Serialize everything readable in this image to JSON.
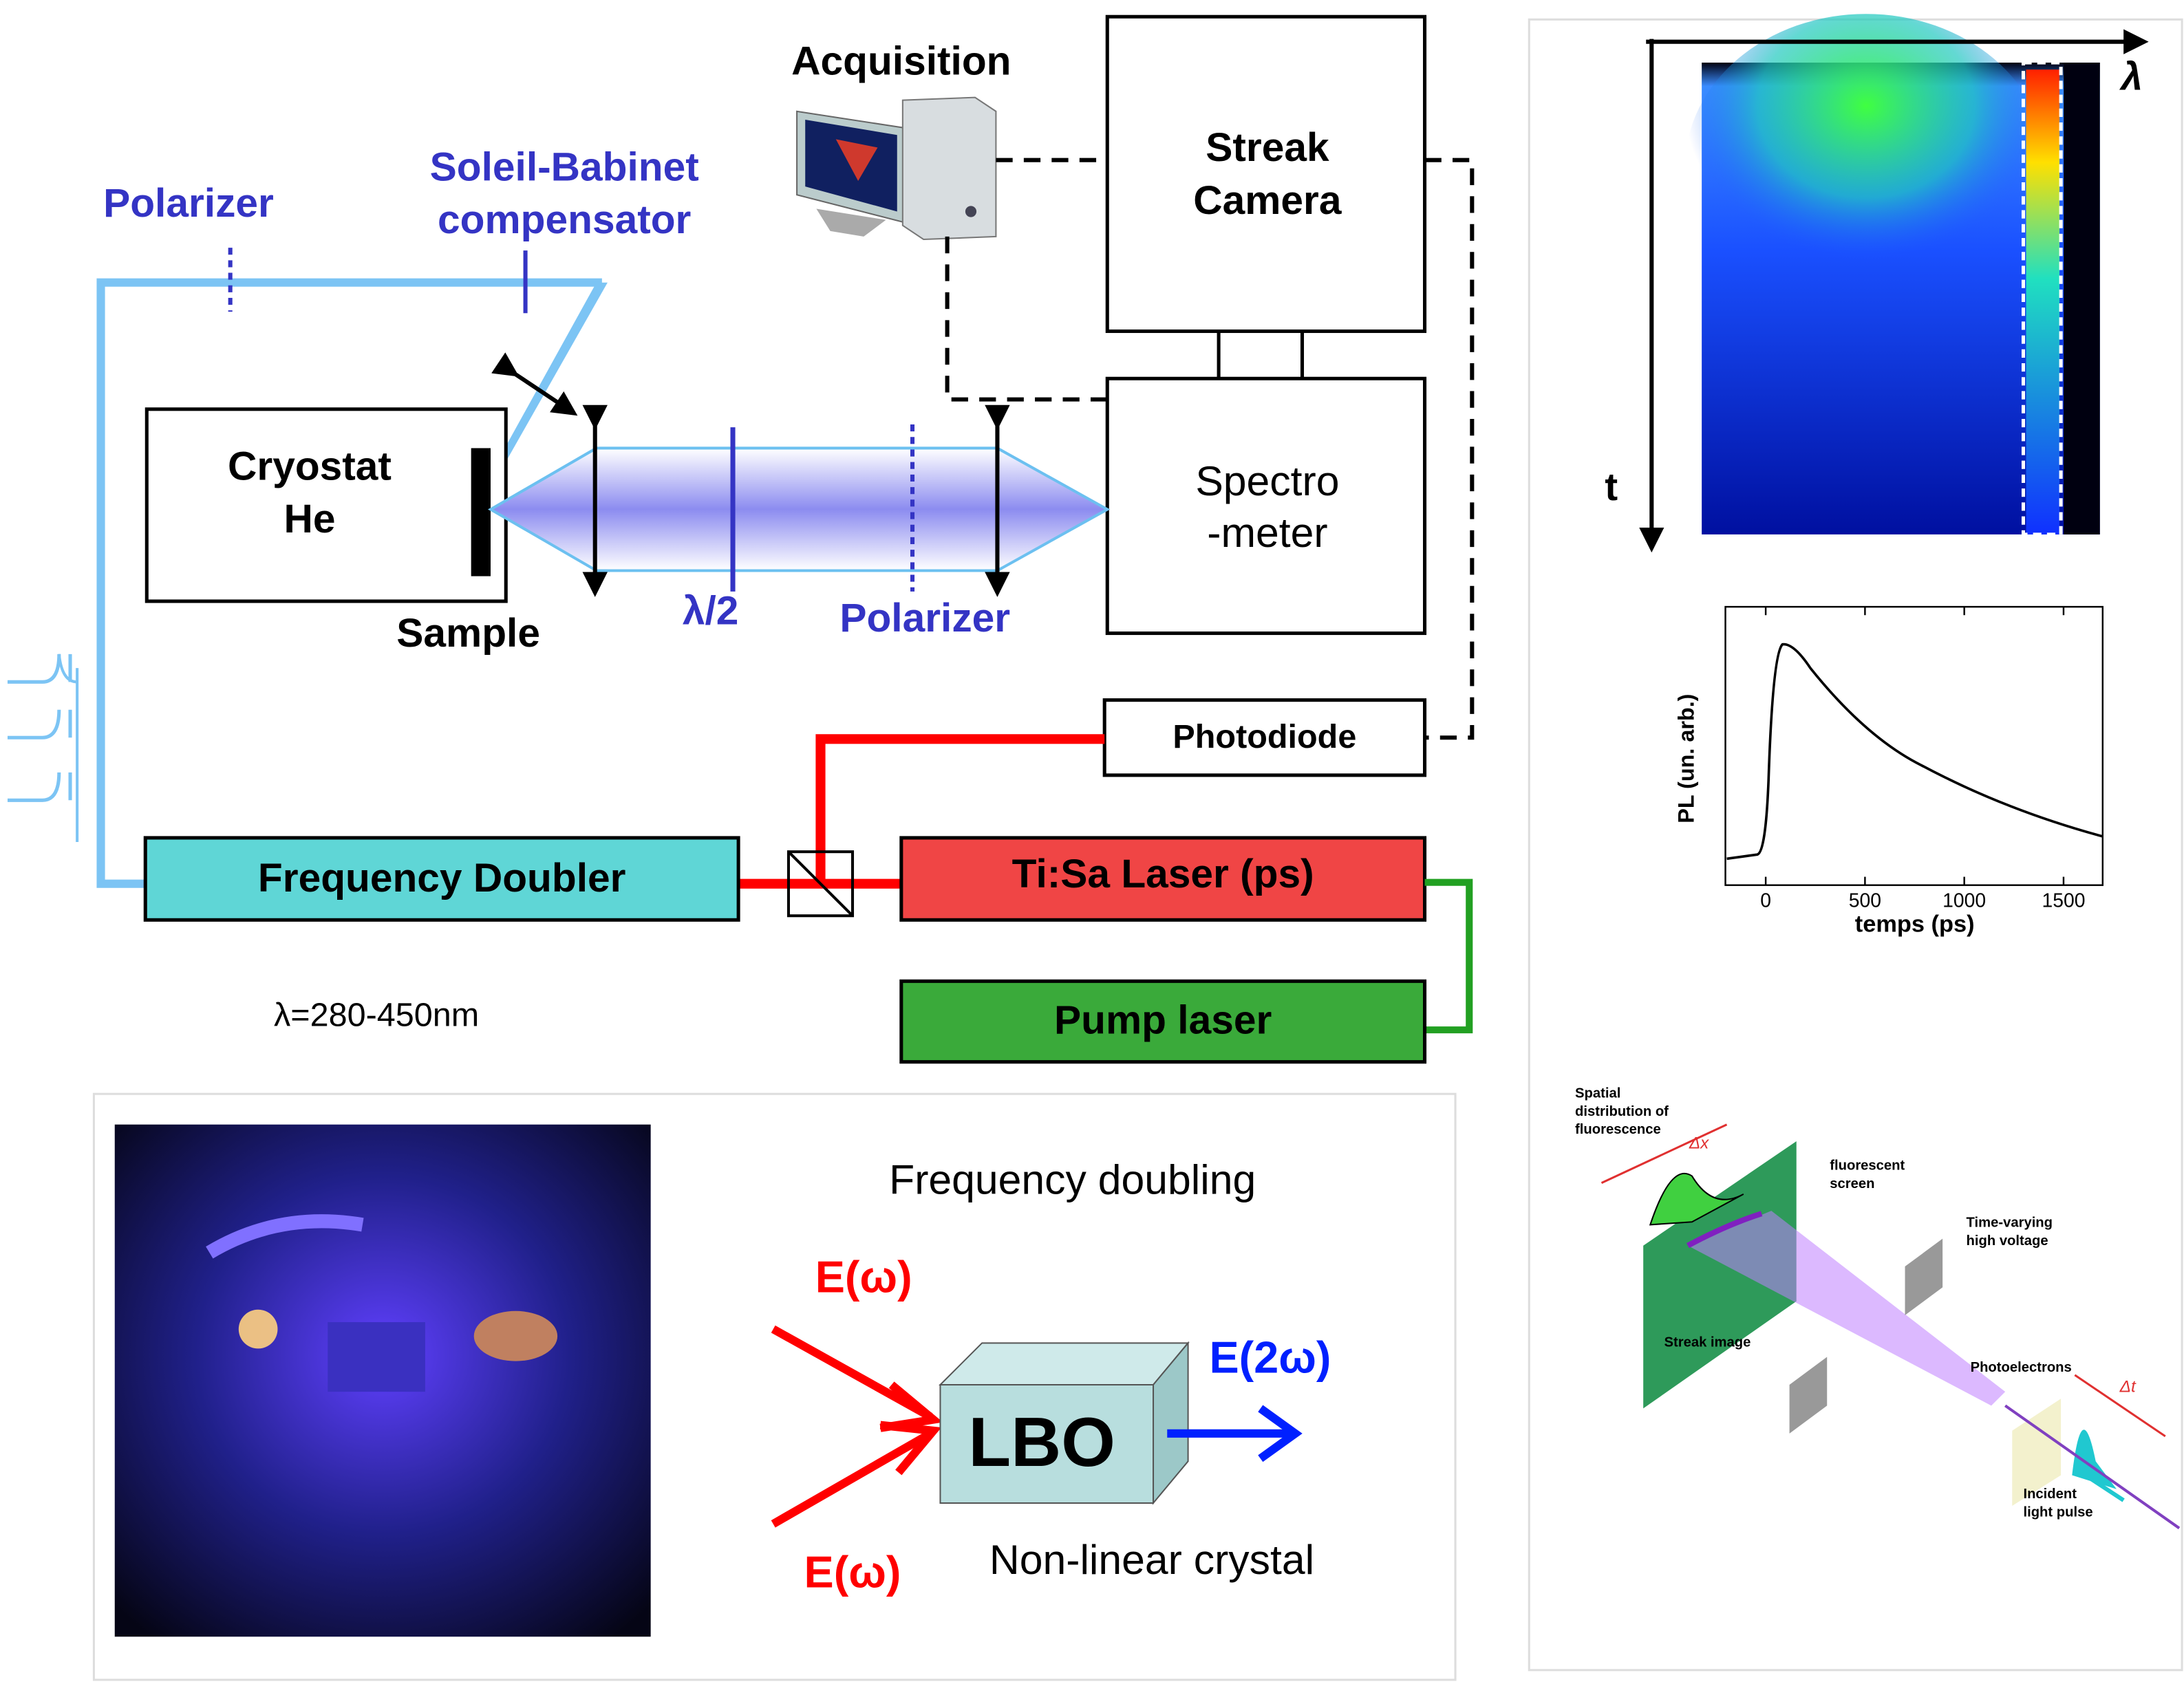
{
  "setup": {
    "acquisition": "Acquisition",
    "streak_camera": [
      "Streak",
      "Camera"
    ],
    "spectrometer": [
      "Spectro",
      "-meter"
    ],
    "polarizer_top": "Polarizer",
    "compensator": [
      "Soleil-Babinet",
      "compensator"
    ],
    "cryostat": [
      "Cryostat",
      "He"
    ],
    "sample": "Sample",
    "half_wave": "λ/2",
    "polarizer_bottom": "Polarizer",
    "photodiode": "Photodiode",
    "doubler": "Frequency Doubler",
    "tisa": "Ti:Sa Laser (ps)",
    "pump": "Pump laser",
    "wavelength_range": "λ=280-450nm"
  },
  "doubling": {
    "title": "Frequency doubling",
    "input_1": "E(ω)",
    "input_2": "E(ω)",
    "output": "E(2ω)",
    "crystal": "LBO",
    "crystal_label": "Non-linear crystal"
  },
  "streak_image": {
    "x_axis": "λ",
    "y_axis": "t"
  },
  "pl_plot": {
    "ylabel": "PL (un. arb.)",
    "xlabel": "temps (ps)",
    "xlim": [
      -203,
      1697
    ],
    "xticks": [
      0,
      500,
      1000,
      1500
    ]
  },
  "streak_principle": {
    "spatial": [
      "Spatial",
      "distribution of",
      "fluorescence"
    ],
    "screen": [
      "fluorescent",
      "screen"
    ],
    "voltage": [
      "Time-varying",
      "high voltage"
    ],
    "streak_image": "Streak image",
    "photoelectrons": "Photoelectrons",
    "pulse": [
      "Incident",
      "light pulse"
    ],
    "delta_x": "Δx",
    "delta_t": "Δt"
  }
}
